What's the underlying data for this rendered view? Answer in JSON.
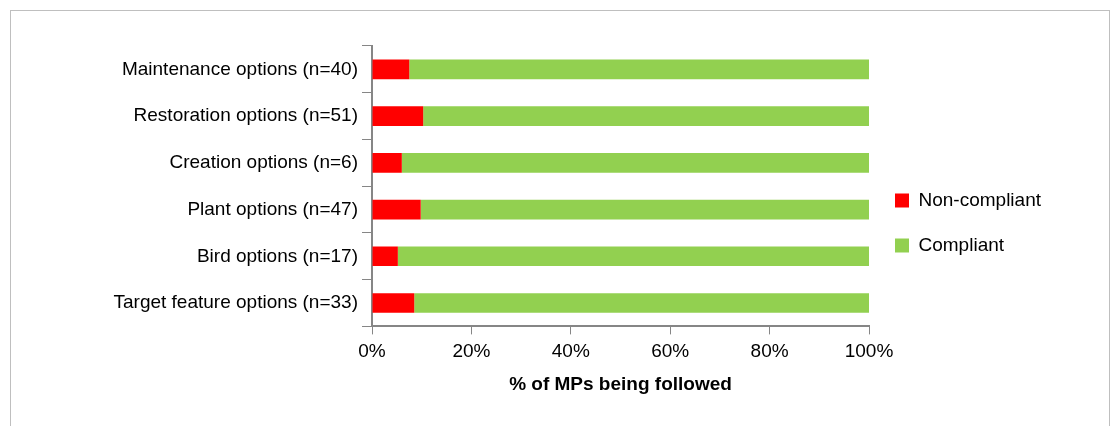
{
  "chart_data": {
    "type": "bar",
    "orientation": "horizontal",
    "stacked": true,
    "categories": [
      "Maintenance options (n=40)",
      "Restoration options (n=51)",
      "Creation options (n=6)",
      "Plant options (n=47)",
      "Bird options (n=17)",
      "Target feature options (n=33)"
    ],
    "series": [
      {
        "name": "Non-compliant",
        "color": "#ff0000",
        "values": [
          7.5,
          10.3,
          6.0,
          9.8,
          5.2,
          8.5
        ]
      },
      {
        "name": "Compliant",
        "color": "#92d050",
        "values": [
          92.5,
          89.7,
          94.0,
          90.2,
          94.8,
          91.5
        ]
      }
    ],
    "xlabel": "% of MPs being followed",
    "xlim": [
      0,
      100
    ],
    "xticks": [
      {
        "value": 0,
        "label": "0%"
      },
      {
        "value": 20,
        "label": "20%"
      },
      {
        "value": 40,
        "label": "40%"
      },
      {
        "value": 60,
        "label": "60%"
      },
      {
        "value": 80,
        "label": "80%"
      },
      {
        "value": 100,
        "label": "100%"
      }
    ],
    "grid": false,
    "legend": "right"
  }
}
